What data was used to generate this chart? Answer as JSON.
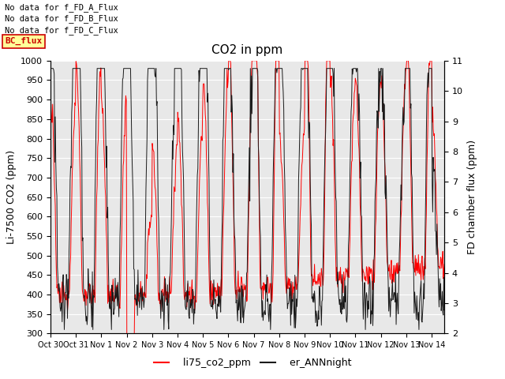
{
  "title": "CO2 in ppm",
  "ylabel_left": "Li-7500 CO2 (ppm)",
  "ylabel_right": "FD chamber flux (ppm)",
  "ylim_left": [
    300,
    1000
  ],
  "ylim_right": [
    2.0,
    11.0
  ],
  "yticks_left": [
    300,
    350,
    400,
    450,
    500,
    550,
    600,
    650,
    700,
    750,
    800,
    850,
    900,
    950,
    1000
  ],
  "yticks_right": [
    2.0,
    3.0,
    4.0,
    5.0,
    6.0,
    7.0,
    8.0,
    9.0,
    10.0,
    11.0
  ],
  "xtick_labels": [
    "Oct 30",
    "Oct 31",
    "Nov 1",
    "Nov 2",
    "Nov 3",
    "Nov 4",
    "Nov 5",
    "Nov 6",
    "Nov 7",
    "Nov 8",
    "Nov 9",
    "Nov 10",
    "Nov 11",
    "Nov 12",
    "Nov 13",
    "Nov 14"
  ],
  "line1_color": "#ff0000",
  "line2_color": "#1a1a1a",
  "line1_label": "li75_co2_ppm",
  "line2_label": "er_ANNnight",
  "legend_texts": [
    "No data for f_FD_A_Flux",
    "No data for f_FD_B_Flux",
    "No data for f_FD_C_Flux"
  ],
  "annotation_box_text": "BC_flux",
  "annotation_box_color": "#ffff99",
  "annotation_box_edge": "#cc0000",
  "annotation_text_color": "#cc0000",
  "plot_bg": "#e8e8e8",
  "grid_color": "#ffffff",
  "title_fontsize": 11,
  "label_fontsize": 9,
  "tick_fontsize": 8
}
